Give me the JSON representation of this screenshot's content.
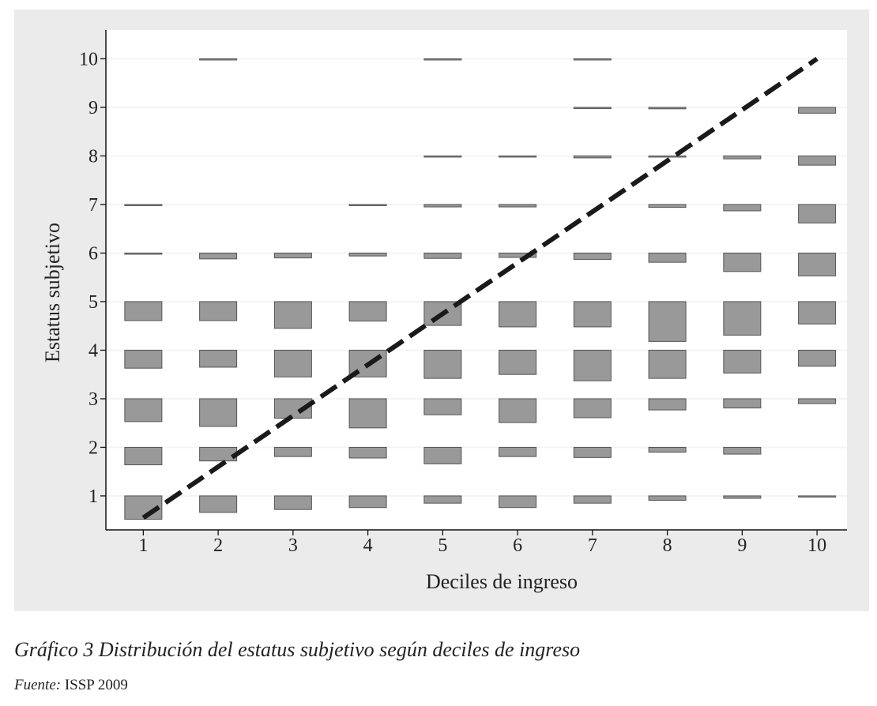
{
  "chart_data": {
    "type": "bar",
    "subtype": "weighted-box-plot",
    "xlabel": "Deciles de ingreso",
    "ylabel": "Estatus subjetivo",
    "x_ticks": [
      "1",
      "2",
      "3",
      "4",
      "5",
      "6",
      "7",
      "8",
      "9",
      "10"
    ],
    "y_ticks": [
      "1",
      "2",
      "3",
      "4",
      "5",
      "6",
      "7",
      "8",
      "9",
      "10"
    ],
    "xlim": [
      0.5,
      10.4
    ],
    "ylim": [
      0.3,
      10.3
    ],
    "grid": true,
    "box_color": "#999999",
    "box_stroke": "#555555",
    "grid_color": "#f4f4f4",
    "panel_color": "#ebebeb",
    "diagonal": {
      "style": "dashed",
      "color": "#1a1a1a",
      "from": [
        1,
        0.55
      ],
      "to": [
        10,
        10
      ]
    },
    "cells": [
      {
        "decile": 1,
        "heights": [
          0.48,
          0.36,
          0.47,
          0.37,
          0.39,
          0.02,
          0.02,
          0,
          0,
          0
        ]
      },
      {
        "decile": 2,
        "heights": [
          0.34,
          0.28,
          0.57,
          0.35,
          0.39,
          0.12,
          0,
          0,
          0,
          0.02
        ]
      },
      {
        "decile": 3,
        "heights": [
          0.28,
          0.19,
          0.4,
          0.55,
          0.55,
          0.1,
          0,
          0,
          0,
          0
        ]
      },
      {
        "decile": 4,
        "heights": [
          0.24,
          0.22,
          0.6,
          0.55,
          0.4,
          0.06,
          0.02,
          0,
          0,
          0
        ]
      },
      {
        "decile": 5,
        "heights": [
          0.15,
          0.34,
          0.33,
          0.58,
          0.49,
          0.11,
          0.05,
          0.02,
          0,
          0.02
        ]
      },
      {
        "decile": 6,
        "heights": [
          0.24,
          0.19,
          0.49,
          0.5,
          0.52,
          0.09,
          0.05,
          0.02,
          0,
          0
        ]
      },
      {
        "decile": 7,
        "heights": [
          0.15,
          0.21,
          0.39,
          0.63,
          0.52,
          0.13,
          0,
          0.04,
          0.02,
          0.02
        ]
      },
      {
        "decile": 8,
        "heights": [
          0.09,
          0.1,
          0.23,
          0.58,
          0.82,
          0.19,
          0.06,
          0.02,
          0.03,
          0
        ]
      },
      {
        "decile": 9,
        "heights": [
          0.05,
          0.14,
          0.19,
          0.47,
          0.69,
          0.38,
          0.13,
          0.06,
          0,
          0
        ]
      },
      {
        "decile": 10,
        "heights": [
          0.02,
          0,
          0.1,
          0.33,
          0.46,
          0.47,
          0.38,
          0.19,
          0.12,
          0
        ]
      }
    ]
  },
  "caption": {
    "title": "Gráfico 3  Distribución del estatus subjetivo según deciles de ingreso",
    "source_label": "Fuente:",
    "source_text": " ISSP 2009"
  }
}
